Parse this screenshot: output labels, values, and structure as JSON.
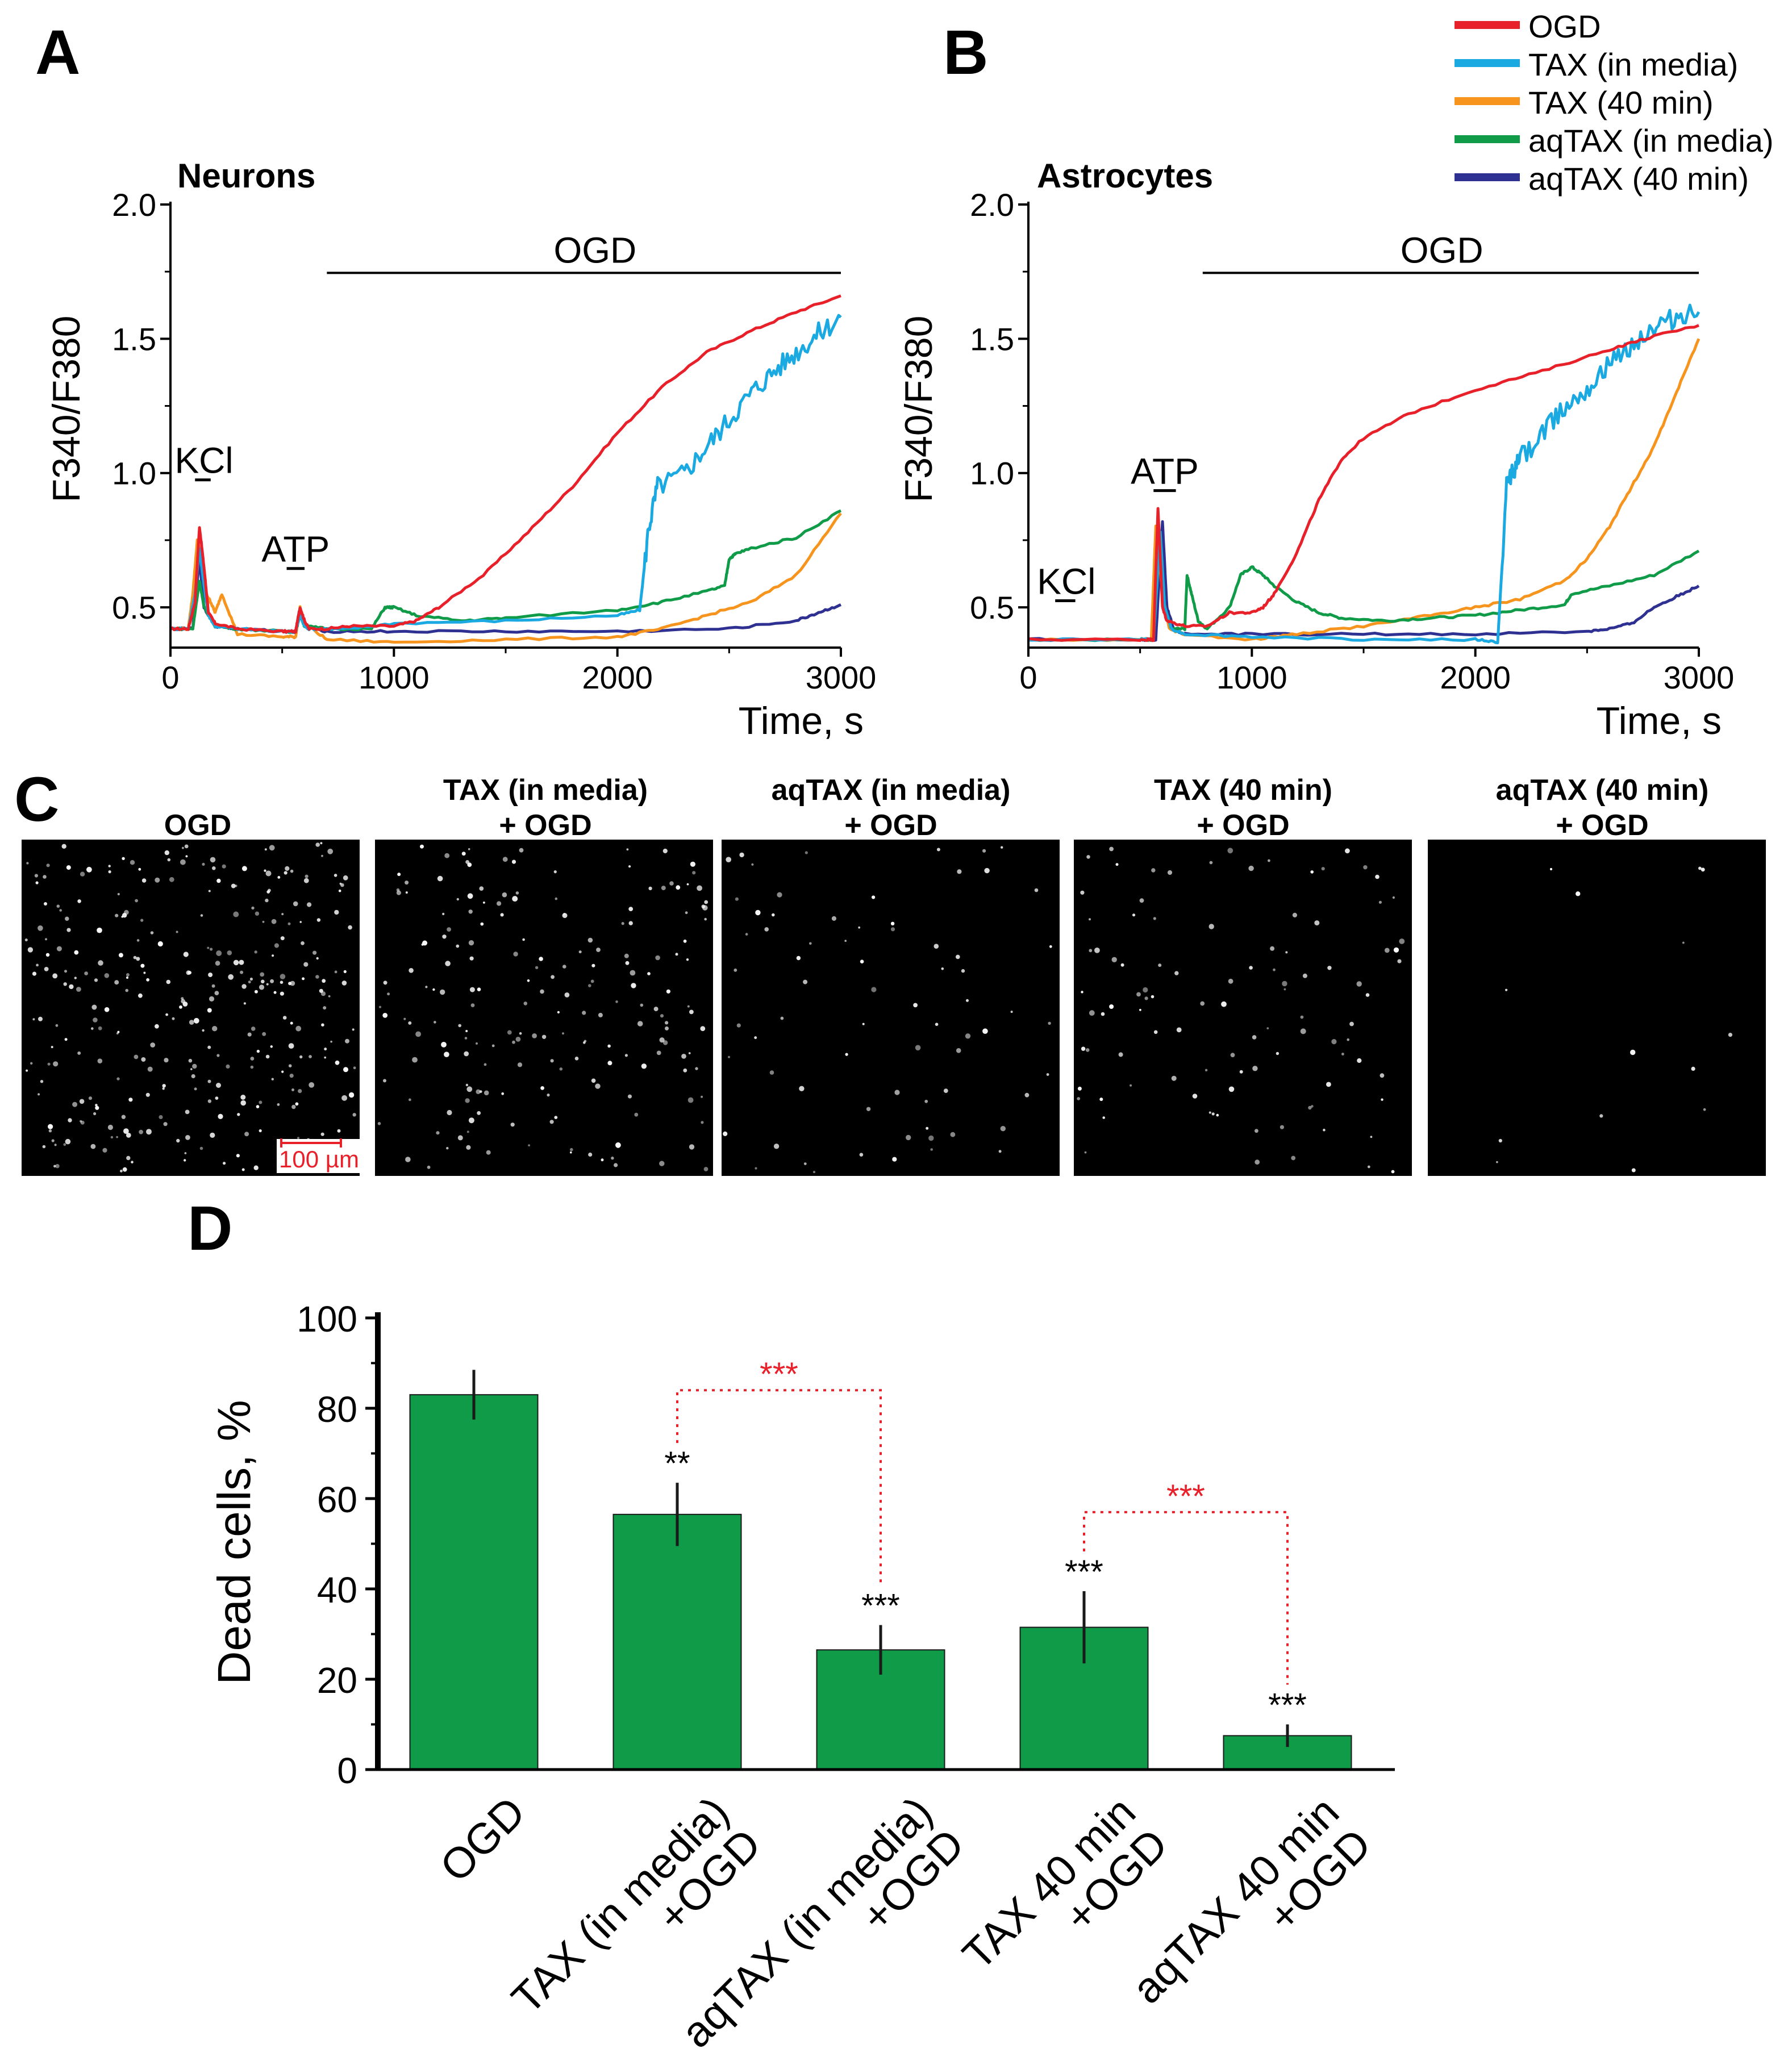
{
  "figure": {
    "panel_labels": [
      "A",
      "B",
      "C",
      "D"
    ]
  },
  "colors": {
    "OGD": "#e8202a",
    "TAX_media": "#1aa9e1",
    "TAX_40": "#f7941d",
    "aqTAX_media": "#0f9b48",
    "aqTAX_40": "#2e3192",
    "bar_fill": "#0f9b48",
    "bracket": "#e8202a",
    "scale_bar": "#e8202a"
  },
  "legend": {
    "entries": [
      {
        "label": "OGD",
        "color": "#e8202a"
      },
      {
        "label": "TAX (in media)",
        "color": "#1aa9e1"
      },
      {
        "label": "TAX (40 min)",
        "color": "#f7941d"
      },
      {
        "label": "aqTAX (in media)",
        "color": "#0f9b48"
      },
      {
        "label": "aqTAX (40 min)",
        "color": "#2e3192"
      }
    ]
  },
  "panelC": {
    "images": [
      {
        "title_lines": [
          "OGD"
        ],
        "density": 320
      },
      {
        "title_lines": [
          "TAX (in media)",
          "+ OGD"
        ],
        "density": 190
      },
      {
        "title_lines": [
          "aqTAX (in media)",
          "+ OGD"
        ],
        "density": 70
      },
      {
        "title_lines": [
          "TAX (40 min)",
          "+ OGD"
        ],
        "density": 100
      },
      {
        "title_lines": [
          "aqTAX (40 min)",
          "+ OGD"
        ],
        "density": 14
      }
    ],
    "scale_bar_label": "100 µm"
  },
  "chart_data": [
    {
      "panel": "A",
      "type": "line",
      "title": "Neurons",
      "xlabel": "Time, s",
      "ylabel": "F340/F380",
      "xlim": [
        0,
        3000
      ],
      "ylim": [
        0.35,
        2.0
      ],
      "xticks": [
        0,
        1000,
        2000,
        3000
      ],
      "yticks": [
        0.5,
        1.0,
        1.5,
        2.0
      ],
      "ytick_labels": [
        "0.5",
        "1.0",
        "1.5",
        "2.0"
      ],
      "annotations": [
        {
          "text": "KCl",
          "x": 150,
          "y": 1.0,
          "bar": [
            110,
            180
          ]
        },
        {
          "text": "ATP",
          "x": 560,
          "y": 0.67,
          "bar": [
            520,
            600
          ]
        },
        {
          "text": "OGD",
          "x": 1900,
          "y": 1.83,
          "bar": [
            700,
            3000
          ]
        }
      ],
      "series": [
        {
          "name": "OGD",
          "x": [
            0,
            80,
            110,
            130,
            150,
            170,
            200,
            300,
            500,
            560,
            580,
            600,
            620,
            700,
            800,
            1000,
            1100,
            1200,
            1400,
            1600,
            1800,
            2000,
            2200,
            2400,
            2600,
            2800,
            3000
          ],
          "y": [
            0.42,
            0.42,
            0.52,
            0.8,
            0.65,
            0.48,
            0.44,
            0.42,
            0.41,
            0.41,
            0.5,
            0.45,
            0.42,
            0.42,
            0.43,
            0.43,
            0.45,
            0.5,
            0.62,
            0.78,
            0.95,
            1.15,
            1.32,
            1.45,
            1.53,
            1.6,
            1.66
          ]
        },
        {
          "name": "TAX (in media)",
          "x": [
            0,
            80,
            110,
            130,
            150,
            170,
            200,
            300,
            500,
            560,
            580,
            600,
            620,
            700,
            800,
            1000,
            1500,
            2000,
            2100,
            2140,
            2180,
            2300,
            2400,
            2500,
            2600,
            2700,
            2800,
            2900,
            3000
          ],
          "y": [
            0.42,
            0.42,
            0.55,
            0.72,
            0.58,
            0.47,
            0.43,
            0.42,
            0.41,
            0.41,
            0.47,
            0.43,
            0.42,
            0.42,
            0.42,
            0.44,
            0.45,
            0.47,
            0.49,
            0.8,
            0.95,
            1.0,
            1.1,
            1.2,
            1.3,
            1.38,
            1.45,
            1.52,
            1.58
          ]
        },
        {
          "name": "TAX (40 min)",
          "x": [
            0,
            80,
            100,
            120,
            140,
            160,
            180,
            200,
            230,
            300,
            500,
            560,
            580,
            600,
            700,
            1000,
            1500,
            2000,
            2200,
            2400,
            2600,
            2800,
            3000
          ],
          "y": [
            0.42,
            0.42,
            0.55,
            0.75,
            0.68,
            0.55,
            0.52,
            0.48,
            0.55,
            0.4,
            0.39,
            0.39,
            0.5,
            0.44,
            0.38,
            0.37,
            0.38,
            0.39,
            0.42,
            0.47,
            0.52,
            0.62,
            0.85
          ]
        },
        {
          "name": "aqTAX (in media)",
          "x": [
            0,
            100,
            130,
            150,
            200,
            300,
            500,
            560,
            580,
            600,
            700,
            900,
            960,
            1000,
            1100,
            1300,
            1500,
            2000,
            2200,
            2400,
            2480,
            2500,
            2530,
            2600,
            2800,
            3000
          ],
          "y": [
            0.42,
            0.42,
            0.6,
            0.5,
            0.43,
            0.42,
            0.41,
            0.41,
            0.47,
            0.43,
            0.42,
            0.42,
            0.5,
            0.5,
            0.47,
            0.45,
            0.46,
            0.49,
            0.52,
            0.56,
            0.58,
            0.68,
            0.7,
            0.72,
            0.76,
            0.86
          ]
        },
        {
          "name": "aqTAX (40 min)",
          "x": [
            0,
            100,
            130,
            150,
            200,
            300,
            500,
            560,
            580,
            600,
            700,
            1000,
            1500,
            2000,
            2500,
            2800,
            2900,
            3000
          ],
          "y": [
            0.42,
            0.42,
            0.68,
            0.5,
            0.43,
            0.42,
            0.41,
            0.41,
            0.5,
            0.43,
            0.41,
            0.41,
            0.41,
            0.41,
            0.42,
            0.45,
            0.48,
            0.51
          ]
        }
      ]
    },
    {
      "panel": "B",
      "type": "line",
      "title": "Astrocytes",
      "xlabel": "Time, s",
      "ylabel": "F340/F380",
      "xlim": [
        0,
        3000
      ],
      "ylim": [
        0.35,
        2.0
      ],
      "xticks": [
        0,
        1000,
        2000,
        3000
      ],
      "yticks": [
        0.5,
        1.0,
        1.5,
        2.0
      ],
      "ytick_labels": [
        "0.5",
        "1.0",
        "1.5",
        "2.0"
      ],
      "annotations": [
        {
          "text": "KCl",
          "x": 170,
          "y": 0.55,
          "bar": [
            120,
            210
          ]
        },
        {
          "text": "ATP",
          "x": 610,
          "y": 0.96,
          "bar": [
            560,
            660
          ]
        },
        {
          "text": "OGD",
          "x": 1850,
          "y": 1.83,
          "bar": [
            780,
            3000
          ]
        }
      ],
      "series": [
        {
          "name": "OGD",
          "x": [
            0,
            500,
            560,
            580,
            600,
            620,
            700,
            800,
            900,
            1000,
            1050,
            1100,
            1200,
            1300,
            1400,
            1500,
            1700,
            2000,
            2300,
            2600,
            2800,
            3000
          ],
          "y": [
            0.38,
            0.38,
            0.38,
            0.87,
            0.5,
            0.45,
            0.43,
            0.43,
            0.48,
            0.48,
            0.5,
            0.55,
            0.7,
            0.9,
            1.05,
            1.13,
            1.22,
            1.31,
            1.38,
            1.46,
            1.51,
            1.55
          ]
        },
        {
          "name": "TAX (in media)",
          "x": [
            0,
            500,
            560,
            590,
            610,
            640,
            700,
            1000,
            1500,
            2000,
            2100,
            2140,
            2160,
            2200,
            2300,
            2400,
            2500,
            2600,
            2700,
            2800,
            2900,
            3000
          ],
          "y": [
            0.38,
            0.38,
            0.38,
            0.78,
            0.5,
            0.42,
            0.4,
            0.39,
            0.38,
            0.38,
            0.37,
            0.95,
            1.0,
            1.05,
            1.15,
            1.25,
            1.32,
            1.4,
            1.48,
            1.54,
            1.58,
            1.6
          ]
        },
        {
          "name": "TAX (40 min)",
          "x": [
            0,
            500,
            550,
            570,
            600,
            630,
            700,
            1000,
            1200,
            1500,
            1800,
            2000,
            2200,
            2400,
            2500,
            2600,
            2700,
            2800,
            2900,
            3000
          ],
          "y": [
            0.38,
            0.38,
            0.38,
            0.8,
            0.55,
            0.42,
            0.4,
            0.38,
            0.4,
            0.43,
            0.47,
            0.5,
            0.53,
            0.6,
            0.68,
            0.8,
            0.95,
            1.1,
            1.3,
            1.5
          ]
        },
        {
          "name": "aqTAX (in media)",
          "x": [
            0,
            500,
            560,
            590,
            610,
            640,
            700,
            710,
            730,
            760,
            800,
            900,
            950,
            1000,
            1050,
            1100,
            1200,
            1300,
            1400,
            1600,
            1800,
            2000,
            2200,
            2400,
            2430,
            2600,
            2800,
            3000
          ],
          "y": [
            0.38,
            0.38,
            0.38,
            0.78,
            0.5,
            0.42,
            0.42,
            0.62,
            0.55,
            0.45,
            0.42,
            0.5,
            0.62,
            0.65,
            0.62,
            0.58,
            0.52,
            0.48,
            0.46,
            0.45,
            0.46,
            0.47,
            0.49,
            0.51,
            0.55,
            0.58,
            0.62,
            0.71
          ]
        },
        {
          "name": "aqTAX (40 min)",
          "x": [
            0,
            500,
            570,
            600,
            620,
            650,
            700,
            1000,
            1500,
            2000,
            2500,
            2600,
            2700,
            2800,
            2900,
            3000
          ],
          "y": [
            0.38,
            0.38,
            0.38,
            0.82,
            0.5,
            0.42,
            0.4,
            0.4,
            0.4,
            0.4,
            0.41,
            0.42,
            0.44,
            0.5,
            0.54,
            0.58
          ]
        }
      ]
    },
    {
      "panel": "D",
      "type": "bar",
      "ylabel": "Dead cells, %",
      "ylim": [
        0,
        100
      ],
      "yticks": [
        0,
        20,
        40,
        60,
        80,
        100
      ],
      "categories": [
        [
          "OGD"
        ],
        [
          "TAX (in media)",
          "+OGD"
        ],
        [
          "aqTAX (in media)",
          "+OGD"
        ],
        [
          "TAX 40 min",
          "+OGD"
        ],
        [
          "aqTAX 40 min",
          "+OGD"
        ]
      ],
      "values": [
        83,
        56.5,
        26.5,
        31.5,
        7.5
      ],
      "errors": [
        5.5,
        7,
        5.5,
        8,
        2.5
      ],
      "significance": [
        "",
        "**",
        "***",
        "***",
        "***"
      ],
      "brackets": [
        {
          "from": 1,
          "to": 2,
          "label": "***",
          "y": 84
        },
        {
          "from": 3,
          "to": 4,
          "label": "***",
          "y": 57
        }
      ]
    }
  ]
}
